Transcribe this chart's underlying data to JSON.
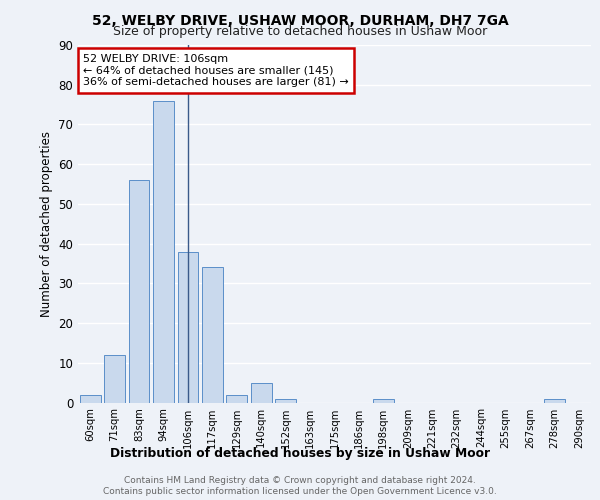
{
  "title1": "52, WELBY DRIVE, USHAW MOOR, DURHAM, DH7 7GA",
  "title2": "Size of property relative to detached houses in Ushaw Moor",
  "xlabel": "Distribution of detached houses by size in Ushaw Moor",
  "ylabel": "Number of detached properties",
  "categories": [
    "60sqm",
    "71sqm",
    "83sqm",
    "94sqm",
    "106sqm",
    "117sqm",
    "129sqm",
    "140sqm",
    "152sqm",
    "163sqm",
    "175sqm",
    "186sqm",
    "198sqm",
    "209sqm",
    "221sqm",
    "232sqm",
    "244sqm",
    "255sqm",
    "267sqm",
    "278sqm",
    "290sqm"
  ],
  "values": [
    2,
    12,
    56,
    76,
    38,
    34,
    2,
    5,
    1,
    0,
    0,
    0,
    1,
    0,
    0,
    0,
    0,
    0,
    0,
    1,
    0
  ],
  "bar_color": "#c9d9ed",
  "bar_edge_color": "#5b8fc9",
  "highlight_index": 4,
  "highlight_line_color": "#3a5a8a",
  "ylim": [
    0,
    90
  ],
  "yticks": [
    0,
    10,
    20,
    30,
    40,
    50,
    60,
    70,
    80,
    90
  ],
  "annotation_text": "52 WELBY DRIVE: 106sqm\n← 64% of detached houses are smaller (145)\n36% of semi-detached houses are larger (81) →",
  "annotation_box_color": "#ffffff",
  "annotation_box_edge": "#cc0000",
  "footer1": "Contains HM Land Registry data © Crown copyright and database right 2024.",
  "footer2": "Contains public sector information licensed under the Open Government Licence v3.0.",
  "bg_color": "#eef2f8",
  "plot_bg_color": "#eef2f8",
  "grid_color": "#ffffff"
}
